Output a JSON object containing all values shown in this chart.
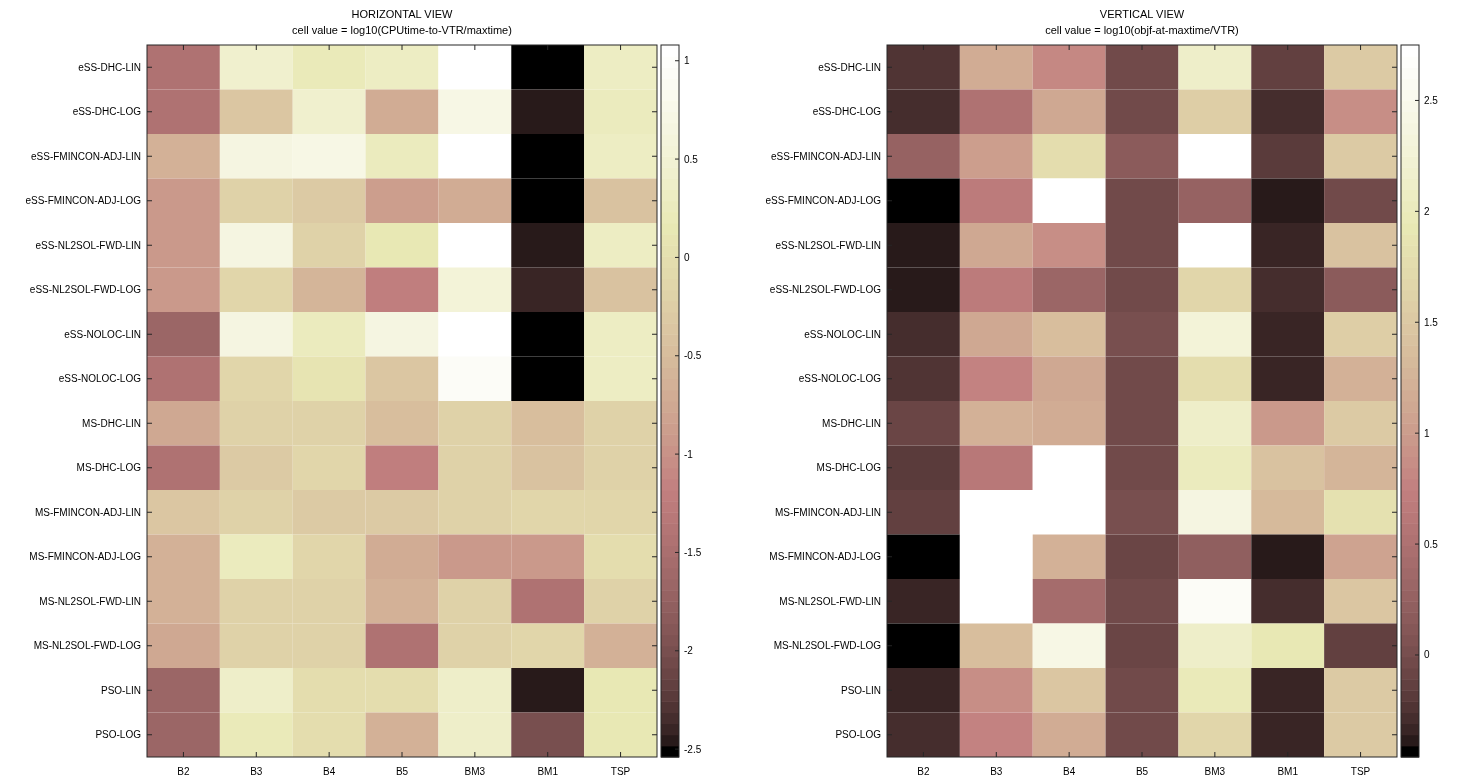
{
  "chart_data": [
    {
      "type": "heatmap",
      "title": "HORIZONTAL VIEW",
      "subtitle": "cell value = log10(CPUtime-to-VTR/maxtime)",
      "categories": [
        "B2",
        "B3",
        "B4",
        "B5",
        "BM3",
        "BM1",
        "TSP"
      ],
      "y_categories": [
        "eSS-DHC-LIN",
        "eSS-DHC-LOG",
        "eSS-FMINCON-ADJ-LIN",
        "eSS-FMINCON-ADJ-LOG",
        "eSS-NL2SOL-FWD-LIN",
        "eSS-NL2SOL-FWD-LOG",
        "eSS-NOLOC-LIN",
        "eSS-NOLOC-LOG",
        "MS-DHC-LIN",
        "MS-DHC-LOG",
        "MS-FMINCON-ADJ-LIN",
        "MS-FMINCON-ADJ-LOG",
        "MS-NL2SOL-FWD-LIN",
        "MS-NL2SOL-FWD-LOG",
        "PSO-LIN",
        "PSO-LOG"
      ],
      "cells": [
        [
          -1.45,
          0.43,
          0.21,
          0.32,
          1.08,
          -2.54,
          0.32
        ],
        [
          -1.42,
          -0.37,
          0.43,
          -0.69,
          0.72,
          -2.47,
          0.28
        ],
        [
          -0.66,
          0.68,
          0.72,
          0.28,
          1.08,
          -2.54,
          0.32
        ],
        [
          -0.91,
          -0.22,
          -0.3,
          -0.87,
          -0.69,
          -2.54,
          -0.4
        ],
        [
          -0.91,
          0.68,
          -0.22,
          0.14,
          1.08,
          -2.47,
          0.32
        ],
        [
          -0.91,
          -0.15,
          -0.59,
          -1.2,
          0.54,
          -2.4,
          -0.44
        ],
        [
          -1.64,
          0.68,
          0.28,
          0.68,
          1.08,
          -2.54,
          0.32
        ],
        [
          -1.45,
          -0.11,
          0.07,
          -0.37,
          0.94,
          -2.54,
          0.32
        ],
        [
          -0.77,
          -0.22,
          -0.22,
          -0.48,
          -0.22,
          -0.48,
          -0.22
        ],
        [
          -1.45,
          -0.3,
          -0.15,
          -1.2,
          -0.22,
          -0.4,
          -0.22
        ],
        [
          -0.37,
          -0.22,
          -0.3,
          -0.3,
          -0.22,
          -0.15,
          -0.15
        ],
        [
          -0.62,
          0.28,
          -0.11,
          -0.69,
          -0.91,
          -0.91,
          -0.04
        ],
        [
          -0.62,
          -0.22,
          -0.22,
          -0.62,
          -0.22,
          -1.45,
          -0.22
        ],
        [
          -0.77,
          -0.22,
          -0.22,
          -1.45,
          -0.22,
          -0.15,
          -0.62
        ],
        [
          -1.67,
          0.36,
          -0.04,
          0.0,
          0.36,
          -2.47,
          0.14
        ],
        [
          -1.67,
          0.21,
          0.0,
          -0.62,
          0.36,
          -2.03,
          0.14
        ]
      ],
      "clim": [
        -2.54,
        1.08
      ],
      "cticks": [
        -2.5,
        -2,
        -1.5,
        -1,
        -0.5,
        0,
        0.5,
        1
      ]
    },
    {
      "type": "heatmap",
      "title": "VERTICAL VIEW",
      "subtitle": "cell value = log10(objf-at-maxtime/VTR)",
      "categories": [
        "B2",
        "B3",
        "B4",
        "B5",
        "BM3",
        "BM1",
        "TSP"
      ],
      "y_categories": [
        "eSS-DHC-LIN",
        "eSS-DHC-LOG",
        "eSS-FMINCON-ADJ-LIN",
        "eSS-FMINCON-ADJ-LOG",
        "eSS-NL2SOL-FWD-LIN",
        "eSS-NL2SOL-FWD-LOG",
        "eSS-NOLOC-LIN",
        "eSS-NOLOC-LOG",
        "MS-DHC-LIN",
        "MS-DHC-LOG",
        "MS-FMINCON-ADJ-LIN",
        "MS-FMINCON-ADJ-LOG",
        "MS-NL2SOL-FWD-LIN",
        "MS-NL2SOL-FWD-LOG",
        "PSO-LIN",
        "PSO-LOG"
      ],
      "cells": [
        [
          -0.24,
          1.15,
          0.82,
          -0.04,
          2.14,
          -0.14,
          1.53
        ],
        [
          -0.27,
          0.5,
          1.11,
          -0.04,
          1.59,
          -0.27,
          0.89
        ],
        [
          0.28,
          1.02,
          1.75,
          0.18,
          2.75,
          -0.17,
          1.53
        ],
        [
          -0.46,
          0.66,
          2.75,
          -0.04,
          0.28,
          -0.4,
          -0.04
        ],
        [
          -0.4,
          1.11,
          0.89,
          -0.04,
          2.75,
          -0.33,
          1.43
        ],
        [
          -0.4,
          0.66,
          0.3,
          -0.04,
          1.66,
          -0.27,
          0.18
        ],
        [
          -0.27,
          1.11,
          1.37,
          0.02,
          2.27,
          -0.33,
          1.59
        ],
        [
          -0.24,
          0.76,
          1.11,
          -0.04,
          1.75,
          -0.33,
          1.24
        ],
        [
          -0.07,
          1.24,
          1.15,
          -0.04,
          2.1,
          0.95,
          1.53
        ],
        [
          -0.17,
          0.63,
          2.75,
          -0.04,
          2.04,
          1.43,
          1.27
        ],
        [
          -0.11,
          2.75,
          2.75,
          0.0,
          2.37,
          1.3,
          1.82
        ],
        [
          -0.46,
          2.75,
          1.2,
          -0.1,
          0.22,
          -0.4,
          1.08
        ],
        [
          -0.33,
          2.75,
          0.4,
          -0.04,
          2.6,
          -0.27,
          1.46
        ],
        [
          -0.46,
          1.37,
          2.4,
          -0.1,
          2.14,
          1.92,
          -0.14
        ],
        [
          -0.33,
          0.89,
          1.46,
          -0.04,
          1.98,
          -0.33,
          1.53
        ],
        [
          -0.27,
          0.79,
          1.15,
          -0.04,
          1.66,
          -0.33,
          1.5
        ]
      ],
      "clim": [
        -0.46,
        2.75
      ],
      "cticks": [
        0,
        0.5,
        1,
        1.5,
        2,
        2.5
      ]
    }
  ]
}
